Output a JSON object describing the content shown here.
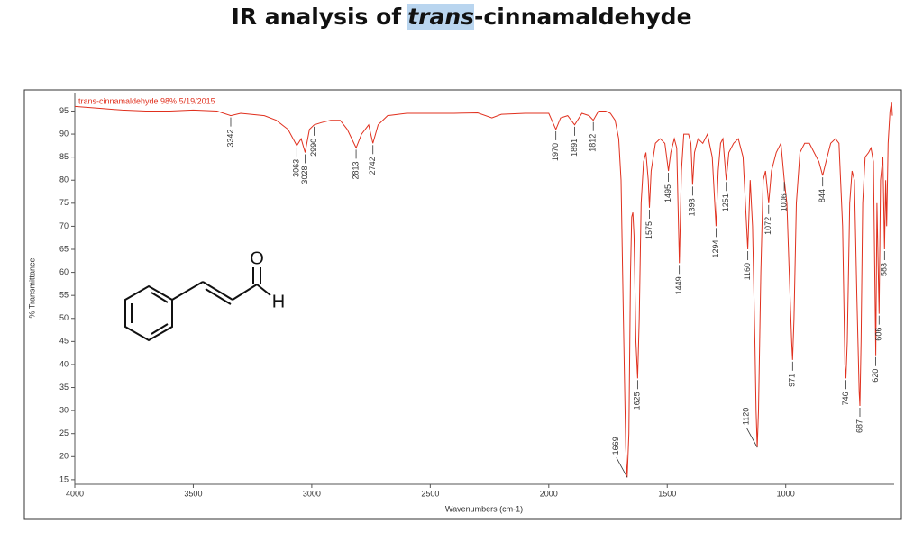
{
  "chart_data": {
    "type": "line",
    "title_parts": [
      "IR analysis of",
      "trans",
      "-cinnamaldehyde"
    ],
    "xlabel": "Wavenumbers (cm-1)",
    "ylabel": "% Transmittance",
    "xlim": [
      4000,
      550
    ],
    "ylim": [
      14,
      99
    ],
    "xticks": [
      4000,
      3500,
      3000,
      2500,
      2000,
      1500,
      1000
    ],
    "yticks": [
      15,
      20,
      25,
      30,
      35,
      40,
      45,
      50,
      55,
      60,
      65,
      70,
      75,
      80,
      85,
      90,
      95
    ],
    "grid": false,
    "x": [
      4000,
      3900,
      3800,
      3700,
      3600,
      3500,
      3400,
      3342,
      3300,
      3200,
      3150,
      3100,
      3063,
      3045,
      3028,
      3010,
      2990,
      2960,
      2920,
      2880,
      2850,
      2813,
      2790,
      2760,
      2742,
      2720,
      2680,
      2600,
      2400,
      2300,
      2240,
      2200,
      2100,
      2000,
      1970,
      1950,
      1920,
      1891,
      1860,
      1830,
      1812,
      1790,
      1760,
      1740,
      1720,
      1705,
      1695,
      1685,
      1675,
      1669,
      1662,
      1655,
      1650,
      1645,
      1640,
      1632,
      1625,
      1618,
      1610,
      1600,
      1590,
      1580,
      1575,
      1568,
      1550,
      1530,
      1510,
      1495,
      1485,
      1470,
      1460,
      1449,
      1440,
      1430,
      1410,
      1400,
      1393,
      1385,
      1370,
      1350,
      1330,
      1310,
      1294,
      1285,
      1275,
      1265,
      1251,
      1240,
      1220,
      1200,
      1180,
      1170,
      1160,
      1150,
      1140,
      1130,
      1125,
      1120,
      1115,
      1105,
      1095,
      1085,
      1072,
      1060,
      1040,
      1020,
      1006,
      995,
      985,
      975,
      971,
      965,
      955,
      940,
      920,
      900,
      880,
      860,
      844,
      830,
      810,
      790,
      775,
      760,
      750,
      746,
      740,
      730,
      720,
      710,
      700,
      690,
      687,
      682,
      675,
      665,
      650,
      640,
      630,
      620,
      615,
      606,
      600,
      590,
      583,
      578,
      574,
      568,
      560,
      553,
      550
    ],
    "series": [
      {
        "name": "trans-cinnamaldehyde 98% 5/19/2015",
        "color": "#e0301e",
        "values": [
          96,
          95.6,
          95.2,
          95,
          95,
          95.2,
          95,
          94,
          94.5,
          94,
          93,
          91,
          87.5,
          89,
          86,
          91,
          92,
          92.5,
          93,
          93,
          91,
          87,
          90,
          92,
          88,
          92,
          94,
          94.5,
          94.5,
          94.6,
          93.5,
          94.3,
          94.5,
          94.5,
          91,
          93.5,
          94,
          92,
          94.5,
          94,
          93,
          95,
          95,
          94.5,
          93,
          89,
          80,
          50,
          22,
          15.5,
          25,
          60,
          72,
          73,
          68,
          45,
          37,
          50,
          75,
          84,
          86,
          80,
          74,
          82,
          88,
          89,
          88,
          82,
          86,
          89,
          87,
          62,
          82,
          90,
          90,
          88,
          79,
          86,
          89,
          88,
          90,
          85,
          70,
          82,
          88,
          89,
          80,
          86,
          88,
          89,
          85,
          75,
          65,
          80,
          70,
          45,
          30,
          22,
          30,
          60,
          80,
          82,
          75,
          82,
          86,
          88,
          80,
          75,
          60,
          45,
          41,
          50,
          75,
          86,
          88,
          88,
          86,
          84,
          81,
          84,
          88,
          89,
          88,
          70,
          40,
          37,
          45,
          75,
          82,
          80,
          55,
          34,
          31,
          45,
          75,
          85,
          86,
          87,
          84,
          42,
          75,
          51,
          80,
          85,
          65,
          80,
          70,
          88,
          95,
          97,
          94
        ]
      }
    ],
    "peaks": [
      3342,
      3063,
      3028,
      2990,
      2813,
      2742,
      1970,
      1891,
      1812,
      1669,
      1625,
      1575,
      1495,
      1449,
      1393,
      1294,
      1251,
      1160,
      1120,
      1072,
      1006,
      971,
      844,
      746,
      687,
      620,
      606,
      583
    ],
    "structure_labels": [
      "O",
      "H"
    ]
  }
}
